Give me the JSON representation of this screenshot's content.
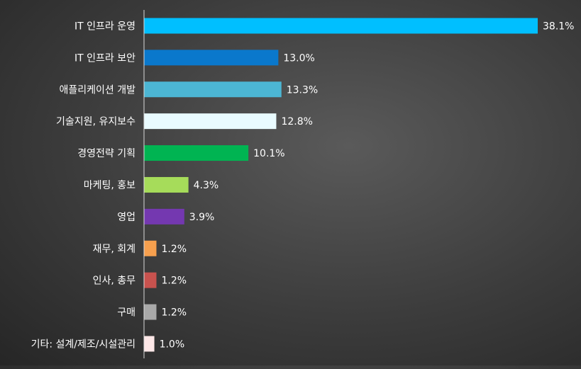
{
  "chart_data": {
    "type": "bar",
    "orientation": "horizontal",
    "title": "",
    "xlabel": "",
    "ylabel": "",
    "xlim": [
      0,
      40
    ],
    "grid": false,
    "legend": "none",
    "categories": [
      "IT 인프라 운영",
      "IT 인프라 보안",
      "애플리케이션 개발",
      "기술지원, 유지보수",
      "경영전략 기획",
      "마케팅, 홍보",
      "영업",
      "재무, 회계",
      "인사, 총무",
      "구매",
      "기타: 설계/제조/시설관리"
    ],
    "values": [
      38.1,
      13.0,
      13.3,
      12.8,
      10.1,
      4.3,
      3.9,
      1.2,
      1.2,
      1.2,
      1.0
    ],
    "value_labels": [
      "38.1%",
      "13.0%",
      "13.3%",
      "12.8%",
      "10.1%",
      "4.3%",
      "3.9%",
      "1.2%",
      "1.2%",
      "1.2%",
      "1.0%"
    ],
    "colors": [
      "#00bfff",
      "#0a78cc",
      "#4cb6d4",
      "#e9fbff",
      "#00b452",
      "#a6dc5a",
      "#7438b0",
      "#f7a04e",
      "#c8524e",
      "#a9a9a9",
      "#fde7e7"
    ]
  }
}
